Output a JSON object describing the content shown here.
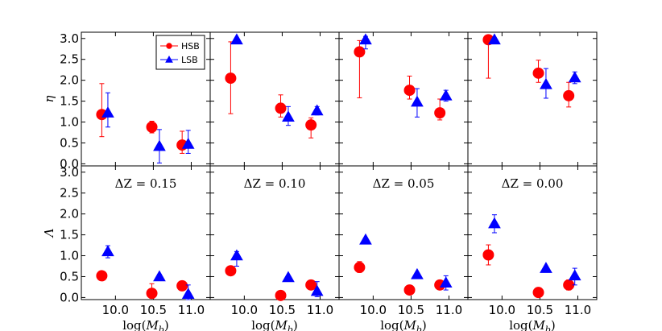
{
  "chart_data": {
    "type": "scatter",
    "title": "",
    "grid": false,
    "layout": "2 rows x 4 columns, shared axes",
    "xlabel": "log(M_b)",
    "xlabel_parts": {
      "base": "log(",
      "var": "M",
      "sub": "b",
      "close": ")"
    },
    "xlim": [
      9.55,
      11.25
    ],
    "xticks": [
      10.0,
      10.5,
      11.0
    ],
    "xtick_labels": [
      "10.0",
      "10.5",
      "11.0"
    ],
    "rows": [
      {
        "ylabel": "η",
        "ylim": [
          -0.05,
          3.15
        ],
        "yticks": [
          0.0,
          0.5,
          1.0,
          1.5,
          2.0,
          2.5,
          3.0
        ],
        "ytick_labels": [
          "0.0",
          "0.5",
          "1.0",
          "1.5",
          "2.0",
          "2.5",
          "3.0"
        ]
      },
      {
        "ylabel": "Λ",
        "ylim": [
          -0.05,
          3.15
        ],
        "yticks": [
          0.0,
          0.5,
          1.0,
          1.5,
          2.0,
          2.5,
          3.0
        ],
        "ytick_labels": [
          "0.0",
          "0.5",
          "1.0",
          "1.5",
          "2.0",
          "2.5",
          "3.0"
        ]
      }
    ],
    "colors": {
      "HSB": "#ff0000",
      "LSB": "#0000ff"
    },
    "legend": {
      "location": "top-right of first panel",
      "entries": [
        {
          "label": "HSB",
          "marker": "circle"
        },
        {
          "label": "LSB",
          "marker": "triangle"
        }
      ]
    },
    "columns": [
      {
        "annotation": "ΔZ = 0.15",
        "eta": {
          "HSB": [
            {
              "x": 9.82,
              "y": 1.18,
              "lo": 0.65,
              "hi": 1.92
            },
            {
              "x": 10.48,
              "y": 0.88,
              "lo": 0.74,
              "hi": 1.02
            },
            {
              "x": 10.88,
              "y": 0.45,
              "lo": 0.25,
              "hi": 0.78
            }
          ],
          "LSB": [
            {
              "x": 9.9,
              "y": 1.22,
              "lo": 0.88,
              "hi": 1.7
            },
            {
              "x": 10.58,
              "y": 0.42,
              "lo": 0.02,
              "hi": 0.82
            },
            {
              "x": 10.96,
              "y": 0.47,
              "lo": 0.25,
              "hi": 0.8
            }
          ]
        },
        "lambda": {
          "HSB": [
            {
              "x": 9.82,
              "y": 0.52,
              "lo": 0.49,
              "hi": 0.55
            },
            {
              "x": 10.48,
              "y": 0.1,
              "lo": -0.02,
              "hi": 0.33
            },
            {
              "x": 10.88,
              "y": 0.28,
              "lo": 0.22,
              "hi": 0.34
            }
          ],
          "LSB": [
            {
              "x": 9.9,
              "y": 1.1,
              "lo": 0.95,
              "hi": 1.24
            },
            {
              "x": 10.58,
              "y": 0.5,
              "lo": 0.45,
              "hi": 0.55
            },
            {
              "x": 10.96,
              "y": 0.08,
              "lo": -0.05,
              "hi": 0.3
            }
          ]
        }
      },
      {
        "annotation": "ΔZ = 0.10",
        "eta": {
          "HSB": [
            {
              "x": 9.82,
              "y": 2.05,
              "lo": 1.2,
              "hi": 2.92
            },
            {
              "x": 10.48,
              "y": 1.33,
              "lo": 1.12,
              "hi": 1.65
            },
            {
              "x": 10.88,
              "y": 0.93,
              "lo": 0.62,
              "hi": 1.1
            }
          ],
          "LSB": [
            {
              "x": 9.9,
              "y": 2.97,
              "lo": 2.93,
              "hi": 3.01
            },
            {
              "x": 10.58,
              "y": 1.12,
              "lo": 0.92,
              "hi": 1.37
            },
            {
              "x": 10.96,
              "y": 1.27,
              "lo": 1.17,
              "hi": 1.37
            }
          ]
        },
        "lambda": {
          "HSB": [
            {
              "x": 9.82,
              "y": 0.64,
              "lo": 0.6,
              "hi": 0.68
            },
            {
              "x": 10.48,
              "y": 0.05,
              "lo": -0.02,
              "hi": 0.15
            },
            {
              "x": 10.88,
              "y": 0.3,
              "lo": 0.22,
              "hi": 0.38
            }
          ],
          "LSB": [
            {
              "x": 9.9,
              "y": 1.0,
              "lo": 0.75,
              "hi": 1.1
            },
            {
              "x": 10.58,
              "y": 0.48,
              "lo": 0.44,
              "hi": 0.52
            },
            {
              "x": 10.96,
              "y": 0.15,
              "lo": 0.02,
              "hi": 0.38
            }
          ]
        }
      },
      {
        "annotation": "ΔZ = 0.05",
        "eta": {
          "HSB": [
            {
              "x": 9.82,
              "y": 2.68,
              "lo": 1.58,
              "hi": 2.95
            },
            {
              "x": 10.48,
              "y": 1.76,
              "lo": 1.55,
              "hi": 2.1
            },
            {
              "x": 10.88,
              "y": 1.22,
              "lo": 1.05,
              "hi": 1.55
            }
          ],
          "LSB": [
            {
              "x": 9.9,
              "y": 2.97,
              "lo": 2.75,
              "hi": 3.05
            },
            {
              "x": 10.58,
              "y": 1.48,
              "lo": 1.12,
              "hi": 1.8
            },
            {
              "x": 10.96,
              "y": 1.63,
              "lo": 1.5,
              "hi": 1.76
            }
          ]
        },
        "lambda": {
          "HSB": [
            {
              "x": 9.82,
              "y": 0.72,
              "lo": 0.6,
              "hi": 0.86
            },
            {
              "x": 10.48,
              "y": 0.18,
              "lo": 0.14,
              "hi": 0.22
            },
            {
              "x": 10.88,
              "y": 0.3,
              "lo": 0.2,
              "hi": 0.4
            }
          ],
          "LSB": [
            {
              "x": 9.9,
              "y": 1.38,
              "lo": 1.34,
              "hi": 1.42
            },
            {
              "x": 10.58,
              "y": 0.55,
              "lo": 0.51,
              "hi": 0.59
            },
            {
              "x": 10.96,
              "y": 0.35,
              "lo": 0.18,
              "hi": 0.52
            }
          ]
        }
      },
      {
        "annotation": "ΔZ = 0.00",
        "eta": {
          "HSB": [
            {
              "x": 9.82,
              "y": 2.97,
              "lo": 2.05,
              "hi": 3.05
            },
            {
              "x": 10.48,
              "y": 2.17,
              "lo": 1.95,
              "hi": 2.48
            },
            {
              "x": 10.88,
              "y": 1.63,
              "lo": 1.36,
              "hi": 1.95
            }
          ],
          "LSB": [
            {
              "x": 9.9,
              "y": 2.97,
              "lo": 2.93,
              "hi": 3.01
            },
            {
              "x": 10.58,
              "y": 1.9,
              "lo": 1.57,
              "hi": 2.28
            },
            {
              "x": 10.96,
              "y": 2.06,
              "lo": 1.92,
              "hi": 2.2
            }
          ]
        },
        "lambda": {
          "HSB": [
            {
              "x": 9.82,
              "y": 1.02,
              "lo": 0.78,
              "hi": 1.26
            },
            {
              "x": 10.48,
              "y": 0.12,
              "lo": 0.08,
              "hi": 0.16
            },
            {
              "x": 10.88,
              "y": 0.3,
              "lo": 0.18,
              "hi": 0.42
            }
          ],
          "LSB": [
            {
              "x": 9.9,
              "y": 1.77,
              "lo": 1.55,
              "hi": 1.98
            },
            {
              "x": 10.58,
              "y": 0.7,
              "lo": 0.66,
              "hi": 0.74
            },
            {
              "x": 10.96,
              "y": 0.52,
              "lo": 0.3,
              "hi": 0.7
            }
          ]
        }
      }
    ]
  }
}
